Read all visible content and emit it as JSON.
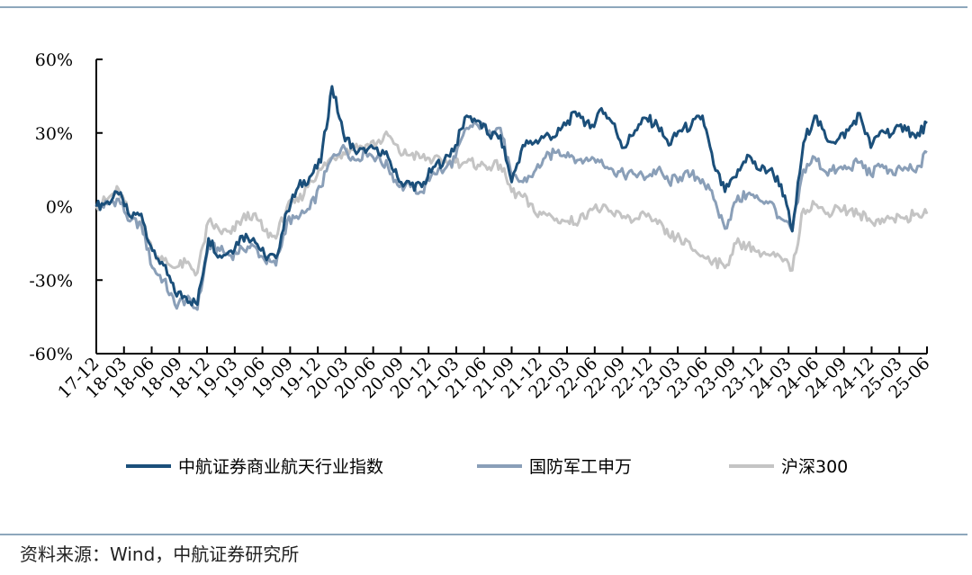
{
  "source": "资料来源：Wind，中航证券研究所",
  "chart_data": {
    "type": "line",
    "ylim": [
      -60,
      60
    ],
    "yticks": [
      60,
      30,
      0,
      -30,
      -60
    ],
    "ytick_labels": [
      "60%",
      "30%",
      "0%",
      "-30%",
      "-60%"
    ],
    "x_ticks": [
      "17-12",
      "18-03",
      "18-06",
      "18-09",
      "18-12",
      "19-03",
      "19-06",
      "19-09",
      "19-12",
      "20-03",
      "20-06",
      "20-09",
      "20-12",
      "21-03",
      "21-06",
      "21-09",
      "21-12",
      "22-03",
      "22-06",
      "22-09",
      "22-12",
      "23-03",
      "23-06",
      "23-09",
      "23-12",
      "24-03",
      "24-06",
      "24-09",
      "24-12",
      "25-03",
      "25-06"
    ],
    "legend_position": "bottom",
    "grid": false,
    "series": [
      {
        "name": "中航证券商业航天行业指数",
        "color": "#1b4f7a",
        "values": [
          0,
          2,
          5,
          -4,
          -3,
          -18,
          -24,
          -35,
          -37,
          -40,
          -13,
          -20,
          -18,
          -12,
          -13,
          -20,
          -21,
          -2,
          8,
          12,
          18,
          49,
          30,
          23,
          22,
          24,
          20,
          10,
          9,
          8,
          16,
          19,
          25,
          37,
          35,
          29,
          29,
          10,
          25,
          26,
          29,
          29,
          35,
          38,
          32,
          40,
          34,
          24,
          31,
          36,
          33,
          25,
          31,
          33,
          37,
          17,
          6,
          12,
          21,
          15,
          15,
          9,
          -10,
          26,
          37,
          28,
          27,
          31,
          38,
          24,
          31,
          30,
          33,
          28,
          34
        ]
      },
      {
        "name": "国防军工申万",
        "color": "#8a9fb8",
        "values": [
          0,
          1,
          3,
          -6,
          -7,
          -25,
          -30,
          -40,
          -38,
          -42,
          -16,
          -18,
          -20,
          -17,
          -16,
          -22,
          -24,
          -6,
          -5,
          -1,
          8,
          20,
          25,
          19,
          22,
          20,
          16,
          8,
          8,
          6,
          14,
          15,
          20,
          32,
          33,
          31,
          32,
          12,
          10,
          14,
          20,
          22,
          22,
          19,
          19,
          19,
          15,
          13,
          13,
          12,
          15,
          10,
          12,
          13,
          11,
          3,
          -9,
          2,
          5,
          3,
          2,
          -5,
          -10,
          15,
          20,
          14,
          15,
          16,
          18,
          13,
          17,
          13,
          16,
          14,
          22
        ]
      },
      {
        "name": "沪深300",
        "color": "#c4c4c4",
        "values": [
          0,
          3,
          7,
          -4,
          -6,
          -18,
          -22,
          -25,
          -23,
          -27,
          -6,
          -10,
          -11,
          -5,
          -3,
          -10,
          -13,
          0,
          2,
          10,
          15,
          20,
          22,
          24,
          25,
          26,
          29,
          22,
          21,
          20,
          19,
          18,
          18,
          18,
          17,
          16,
          17,
          6,
          4,
          -2,
          -3,
          -5,
          -6,
          -6,
          -1,
          -1,
          -3,
          -4,
          -5,
          -4,
          -7,
          -12,
          -13,
          -17,
          -20,
          -22,
          -25,
          -15,
          -16,
          -18,
          -20,
          -21,
          -26,
          -1,
          1,
          -3,
          0,
          -2,
          -3,
          -6,
          -5,
          -5,
          -5,
          -3,
          -3
        ]
      }
    ]
  }
}
